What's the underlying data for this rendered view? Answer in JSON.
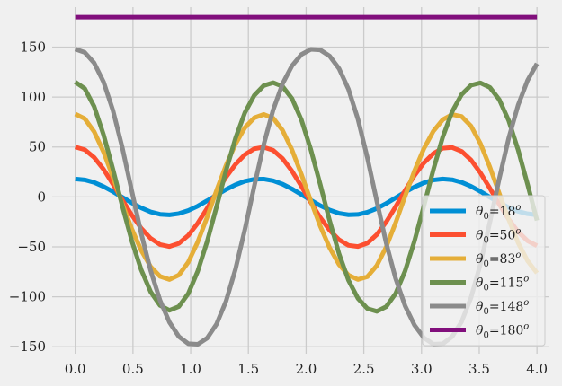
{
  "chart_data": {
    "type": "line",
    "title": "",
    "xlabel": "",
    "ylabel": "",
    "xlim": [
      -0.2,
      4.1
    ],
    "ylim": [
      -157,
      190
    ],
    "xticks": [
      0.0,
      0.5,
      1.0,
      1.5,
      2.0,
      2.5,
      3.0,
      3.5,
      4.0
    ],
    "xtick_labels": [
      "0.0",
      "0.5",
      "1.0",
      "1.5",
      "2.0",
      "2.5",
      "3.0",
      "3.5",
      "4.0"
    ],
    "yticks": [
      -150,
      -100,
      -50,
      0,
      50,
      100,
      150
    ],
    "ytick_labels": [
      "−150",
      "−100",
      "−50",
      "0",
      "50",
      "100",
      "150"
    ],
    "grid": true,
    "legend_position": "lower-right",
    "x": [
      0.0,
      0.0816,
      0.1633,
      0.2449,
      0.3265,
      0.4082,
      0.4898,
      0.5714,
      0.6531,
      0.7347,
      0.8163,
      0.898,
      0.9796,
      1.0612,
      1.1429,
      1.2245,
      1.3061,
      1.3878,
      1.4694,
      1.551,
      1.6327,
      1.7143,
      1.7959,
      1.8776,
      1.9592,
      2.0408,
      2.1224,
      2.2041,
      2.2857,
      2.3673,
      2.449,
      2.5306,
      2.6122,
      2.6939,
      2.7755,
      2.8571,
      2.9388,
      3.0204,
      3.102,
      3.1837,
      3.2653,
      3.3469,
      3.4286,
      3.5102,
      3.5918,
      3.6735,
      3.7551,
      3.8367,
      3.9184,
      4.0
    ],
    "series": [
      {
        "name_prefix": "θ",
        "name_sub": "0",
        "name_rest": "=18",
        "name_sup": "o",
        "color": "#008fd5",
        "values": [
          18.0,
          17.1,
          14.5,
          10.4,
          5.3,
          -0.4,
          -6.0,
          -11.0,
          -15.0,
          -17.4,
          -18.0,
          -16.7,
          -13.6,
          -9.2,
          -3.8,
          1.9,
          7.4,
          12.1,
          15.7,
          17.7,
          17.9,
          16.2,
          12.8,
          8.0,
          2.4,
          -3.3,
          -8.7,
          -13.2,
          -16.4,
          -17.9,
          -17.6,
          -15.4,
          -11.6,
          -6.6,
          -0.9,
          4.8,
          9.9,
          14.1,
          16.9,
          18.0,
          17.2,
          14.6,
          10.6,
          5.5,
          -0.3,
          -5.7,
          -10.7,
          -14.5,
          -16.9,
          -18.0
        ]
      },
      {
        "name_prefix": "θ",
        "name_sub": "0",
        "name_rest": "=50",
        "name_sup": "o",
        "color": "#fc4f30",
        "values": [
          50.0,
          47.3,
          39.6,
          27.7,
          12.8,
          -3.1,
          -18.2,
          -31.4,
          -41.5,
          -47.7,
          -49.7,
          -46.5,
          -38.5,
          -26.3,
          -11.4,
          4.6,
          19.7,
          32.6,
          42.3,
          48.2,
          49.8,
          46.7,
          38.4,
          25.9,
          10.7,
          -5.5,
          -20.6,
          -33.4,
          -42.9,
          -48.5,
          -49.7,
          -46.3,
          -37.8,
          -25.1,
          -9.8,
          6.4,
          21.4,
          34.1,
          43.4,
          48.8,
          49.5,
          45.7,
          37.0,
          24.1,
          8.7,
          -7.5,
          -22.4,
          -34.9,
          -44.0,
          -48.9
        ]
      },
      {
        "name_prefix": "θ",
        "name_sub": "0",
        "name_rest": "=83",
        "name_sup": "o",
        "color": "#e5ae38",
        "values": [
          83.0,
          78.4,
          65.4,
          45.0,
          19.9,
          -7.0,
          -32.1,
          -53.5,
          -69.9,
          -79.6,
          -82.7,
          -78.2,
          -65.3,
          -45.1,
          -20.2,
          6.5,
          31.5,
          52.9,
          69.3,
          79.2,
          82.6,
          78.9,
          66.7,
          47.1,
          22.6,
          -4.0,
          -29.2,
          -51.0,
          -67.8,
          -78.4,
          -82.7,
          -79.9,
          -68.8,
          -50.1,
          -25.9,
          0.6,
          26.1,
          48.4,
          65.8,
          77.3,
          82.5,
          80.6,
          71.0,
          53.4,
          29.9,
          3.5,
          -22.6,
          -45.9,
          -64.0,
          -76.2
        ]
      },
      {
        "name_prefix": "θ",
        "name_sub": "0",
        "name_rest": "=115",
        "name_sup": "o",
        "color": "#6d904f",
        "values": [
          115.0,
          108.6,
          90.6,
          62.3,
          27.7,
          -9.3,
          -44.0,
          -73.0,
          -95.0,
          -108.6,
          -113.6,
          -109.7,
          -96.7,
          -74.4,
          -44.6,
          -9.8,
          26.2,
          58.6,
          84.3,
          101.7,
          111.4,
          114.4,
          110.6,
          98.5,
          77.2,
          47.4,
          12.5,
          -23.9,
          -57.1,
          -83.5,
          -101.6,
          -111.8,
          -114.6,
          -109.9,
          -96.8,
          -74.3,
          -44.2,
          -9.1,
          27.1,
          59.9,
          85.4,
          102.5,
          111.8,
          114.2,
          109.7,
          97.4,
          76.4,
          47.1,
          12.6,
          -23.6
        ]
      },
      {
        "name_prefix": "θ",
        "name_sub": "0",
        "name_rest": "=148",
        "name_sup": "o",
        "color": "#8b8b8b",
        "values": [
          148.0,
          144.7,
          134.2,
          115.2,
          86.6,
          49.1,
          6.0,
          -36.6,
          -73.7,
          -103.6,
          -125.5,
          -139.9,
          -147.0,
          -147.6,
          -141.4,
          -127.3,
          -104.5,
          -72.5,
          -32.7,
          10.9,
          52.4,
          87.0,
          113.3,
          131.3,
          142.6,
          147.7,
          147.2,
          141.0,
          128.4,
          107.8,
          77.9,
          39.3,
          -4.1,
          -46.2,
          -81.7,
          -109.0,
          -128.4,
          -141.1,
          -147.4,
          -147.1,
          -139.9,
          -125.0,
          -100.9,
          -67.1,
          -25.5,
          18.3,
          58.8,
          91.9,
          116.6,
          133.5
        ]
      },
      {
        "name_prefix": "θ",
        "name_sub": "0",
        "name_rest": "=180",
        "name_sup": "o",
        "color": "#810f7c",
        "values": [
          180.0,
          180.0,
          180.0,
          180.0,
          180.0,
          180.0,
          180.0,
          180.0,
          180.0,
          180.0,
          180.0,
          180.0,
          180.0,
          180.0,
          180.0,
          180.0,
          180.0,
          180.0,
          180.0,
          180.0,
          180.0,
          180.0,
          180.0,
          180.0,
          180.0,
          180.0,
          180.0,
          180.0,
          180.0,
          180.0,
          180.0,
          180.0,
          180.0,
          180.0,
          180.0,
          180.0,
          180.0,
          180.0,
          180.0,
          180.0,
          180.0,
          180.0,
          180.0,
          180.0,
          180.0,
          180.0,
          180.0,
          180.0,
          180.0,
          180.0
        ]
      }
    ]
  },
  "colors": {
    "background": "#f0f0f0",
    "grid": "#cbcbcb",
    "legend_bg": "#f0f0f0",
    "legend_border": "#cccccc"
  }
}
